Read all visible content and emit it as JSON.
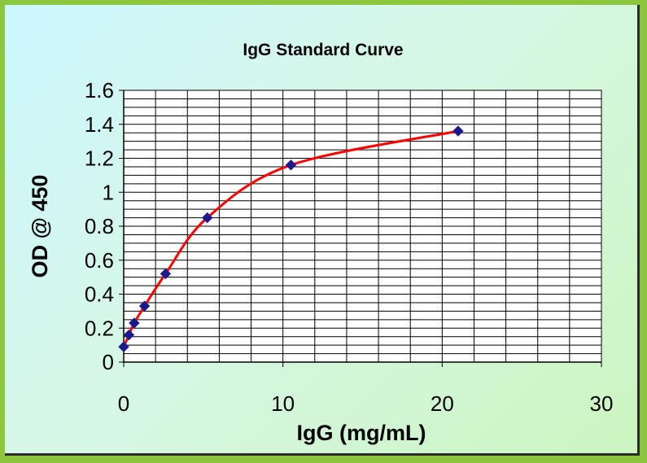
{
  "chart_data": {
    "type": "scatter",
    "title": "IgG Standard Curve",
    "xlabel": "IgG (mg/mL)",
    "ylabel": "OD @ 450",
    "xlim": [
      0,
      30
    ],
    "ylim": [
      0,
      1.6
    ],
    "x_ticks": [
      "0",
      "10",
      "20",
      "30"
    ],
    "y_ticks": [
      "0",
      "0.2",
      "0.4",
      "0.6",
      "0.8",
      "1",
      "1.2",
      "1.4",
      "1.6"
    ],
    "grid": true,
    "legend": "none",
    "series": [
      {
        "x": [
          0,
          0.33,
          0.66,
          1.31,
          2.63,
          5.25,
          10.5,
          21
        ],
        "y": [
          0.09,
          0.16,
          0.23,
          0.33,
          0.52,
          0.85,
          1.16,
          1.36
        ],
        "marker_color": "#1a1a8c",
        "line_color": "#ff0000"
      }
    ]
  }
}
